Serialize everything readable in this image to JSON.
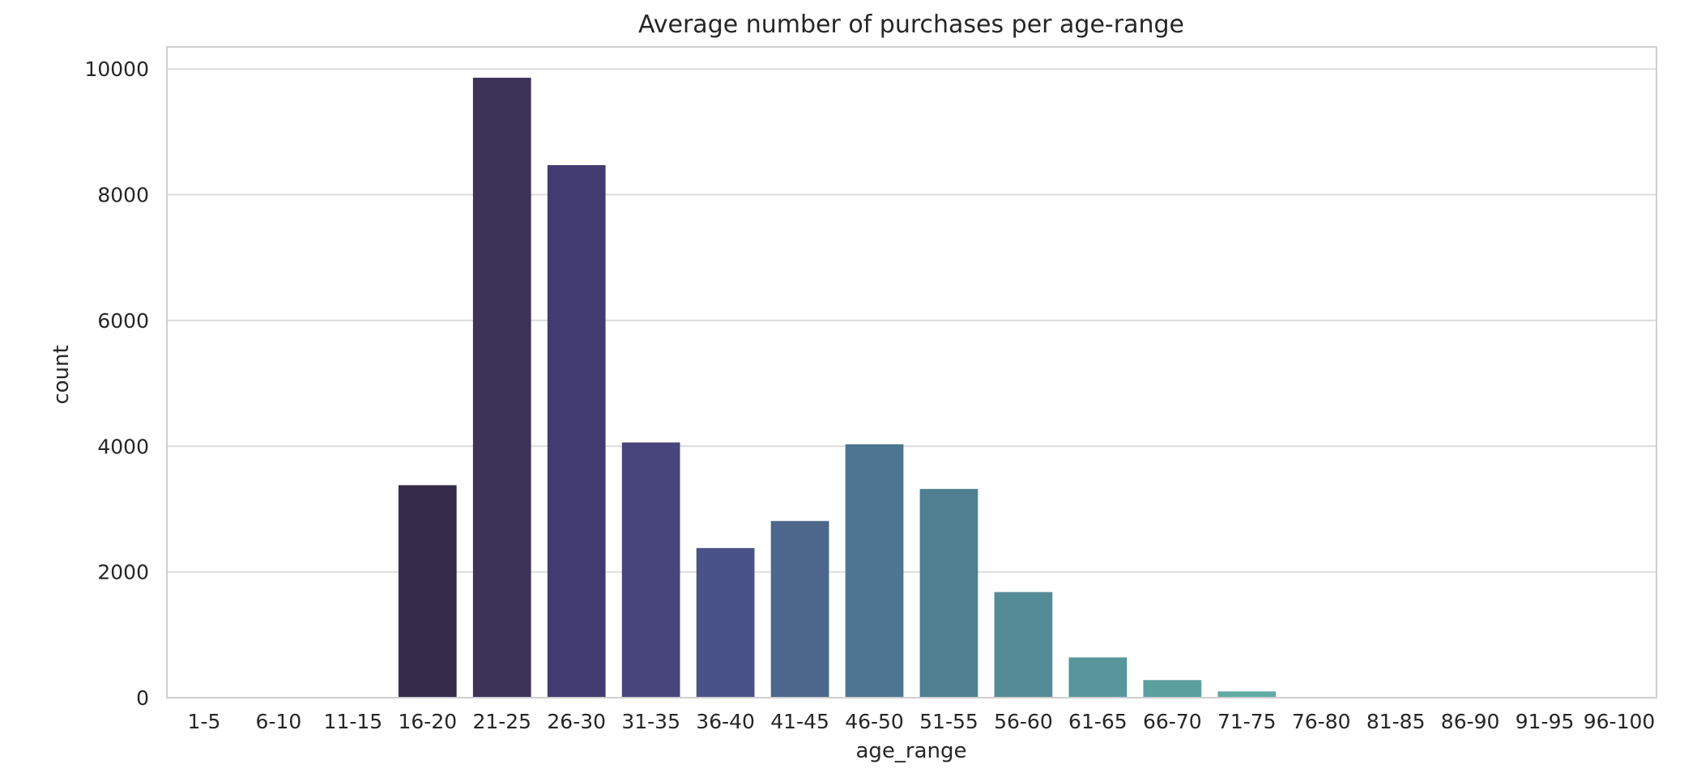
{
  "chart_data": {
    "type": "bar",
    "title": "Average number of purchases per age-range",
    "xlabel": "age_range",
    "ylabel": "count",
    "ylim": [
      0,
      10350
    ],
    "yticks": [
      0,
      2000,
      4000,
      6000,
      8000,
      10000
    ],
    "grid": true,
    "categories": [
      "1-5",
      "6-10",
      "11-15",
      "16-20",
      "21-25",
      "26-30",
      "31-35",
      "36-40",
      "41-45",
      "46-50",
      "51-55",
      "56-60",
      "61-65",
      "66-70",
      "71-75",
      "76-80",
      "81-85",
      "86-90",
      "91-95",
      "96-100"
    ],
    "values": [
      0,
      0,
      0,
      3380,
      9860,
      8470,
      4060,
      2380,
      2810,
      4030,
      3320,
      1680,
      640,
      280,
      100,
      0,
      0,
      0,
      0,
      0
    ],
    "colors": [
      "#2d1e3e",
      "#30213f",
      "#332541",
      "#372b4a",
      "#3d3358",
      "#423b70",
      "#47457b",
      "#4a5388",
      "#4c678b",
      "#4e7591",
      "#4f8091",
      "#548b96",
      "#57969b",
      "#5b9f9e",
      "#62aaa4",
      "#6bb4aa",
      "#75bdb0",
      "#80c6b7",
      "#8ccfbe",
      "#98d8c6"
    ]
  }
}
